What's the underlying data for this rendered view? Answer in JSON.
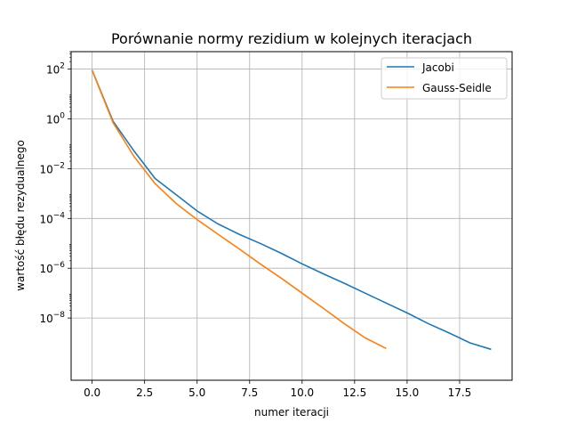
{
  "chart_data": {
    "type": "line",
    "title": "Porównanie normy rezidium w kolejnych iteracjach",
    "xlabel": "numer iteracji",
    "ylabel": "wartość błędu rezydualnego",
    "xlim": [
      -1,
      20
    ],
    "ylim_log10": [
      -10.5,
      2.7
    ],
    "yscale": "log",
    "grid": true,
    "legend_position": "top-right",
    "x_ticks": [
      {
        "value": 0,
        "label": "0.0"
      },
      {
        "value": 2.5,
        "label": "2.5"
      },
      {
        "value": 5,
        "label": "5.0"
      },
      {
        "value": 7.5,
        "label": "7.5"
      },
      {
        "value": 10,
        "label": "10.0"
      },
      {
        "value": 12.5,
        "label": "12.5"
      },
      {
        "value": 15,
        "label": "15.0"
      },
      {
        "value": 17.5,
        "label": "17.5"
      }
    ],
    "y_ticks": [
      {
        "exp": 2,
        "base": "10",
        "sup": "2"
      },
      {
        "exp": 0,
        "base": "10",
        "sup": "0"
      },
      {
        "exp": -2,
        "base": "10",
        "sup": "−2"
      },
      {
        "exp": -4,
        "base": "10",
        "sup": "−4"
      },
      {
        "exp": -6,
        "base": "10",
        "sup": "−6"
      },
      {
        "exp": -8,
        "base": "10",
        "sup": "−8"
      }
    ],
    "series": [
      {
        "name": "Jacobi",
        "color": "#1f77b4",
        "x": [
          0,
          1,
          2,
          3,
          4,
          5,
          6,
          7,
          8,
          9,
          10,
          11,
          12,
          13,
          14,
          15,
          16,
          17,
          18,
          19
        ],
        "y": [
          90,
          0.8,
          0.05,
          0.004,
          0.0009,
          0.0002,
          6e-05,
          2.3e-05,
          1e-05,
          4e-06,
          1.5e-06,
          6e-07,
          2.5e-07,
          1e-07,
          4e-08,
          1.6e-08,
          6e-09,
          2.5e-09,
          1e-09,
          5.5e-10
        ]
      },
      {
        "name": "Gauss-Seidle",
        "color": "#ff7f0e",
        "x": [
          0,
          1,
          2,
          3,
          4,
          5,
          6,
          7,
          8,
          9,
          10,
          11,
          12,
          13,
          14
        ],
        "y": [
          90,
          0.7,
          0.03,
          0.0025,
          0.0004,
          9e-05,
          2.3e-05,
          6e-06,
          1.5e-06,
          4e-07,
          1e-07,
          2.5e-08,
          6e-09,
          1.6e-09,
          6e-10
        ]
      }
    ]
  }
}
